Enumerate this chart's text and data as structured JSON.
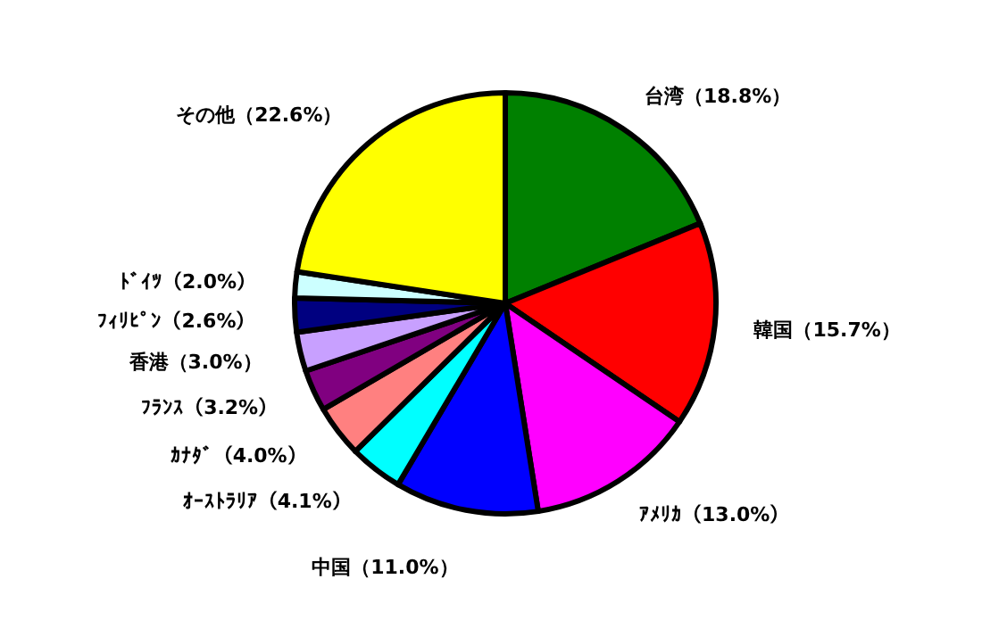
{
  "chart_data": {
    "type": "pie",
    "categories": [
      "台湾",
      "韓国",
      "ｱﾒﾘｶ",
      "中国",
      "ｵｰｽﾄﾗﾘｱ",
      "ｶﾅﾀﾞ",
      "ﾌﾗﾝｽ",
      "香港",
      "ﾌｨﾘﾋﾟﾝ",
      "ﾄﾞｲﾂ",
      "その他"
    ],
    "values": [
      18.8,
      15.7,
      13.0,
      11.0,
      4.1,
      4.0,
      3.2,
      3.0,
      2.6,
      2.0,
      22.6
    ],
    "value_labels": [
      "（18.8%）",
      "（15.7%）",
      "（13.0%）",
      "（11.0%）",
      "（4.1%）",
      "（4.0%）",
      "（3.2%）",
      "（3.0%）",
      "（2.6%）",
      "（2.0%）",
      "（22.6%）"
    ],
    "colors": [
      "#008000",
      "#ff0000",
      "#ff00ff",
      "#0000ff",
      "#00ffff",
      "#ff8080",
      "#800080",
      "#c8a0ff",
      "#000080",
      "#ccffff",
      "#ffff00"
    ]
  }
}
